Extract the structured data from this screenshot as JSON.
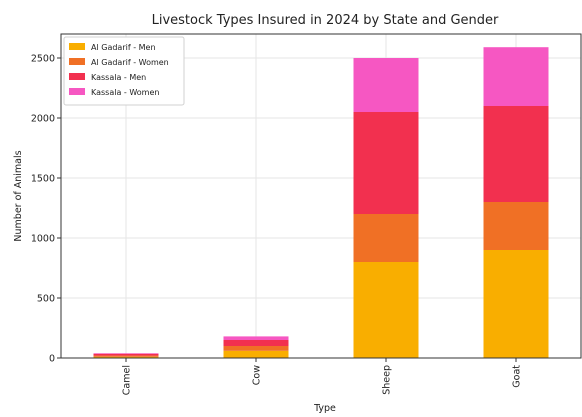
{
  "chart_data": {
    "type": "bar",
    "stacked": true,
    "title": "Livestock Types Insured in 2024 by State and Gender",
    "xlabel": "Type",
    "ylabel": "Number of Animals",
    "categories": [
      "Camel",
      "Cow",
      "Sheep",
      "Goat"
    ],
    "ylim": [
      0,
      2700
    ],
    "yticks": [
      0,
      500,
      1000,
      1500,
      2000,
      2500
    ],
    "grid": true,
    "legend_position": "top-left",
    "series": [
      {
        "name": "Al Gadarif - Men",
        "color": "#F9AE00",
        "values": [
          10,
          60,
          800,
          900
        ]
      },
      {
        "name": "Al Gadarif - Women",
        "color": "#F07025",
        "values": [
          10,
          40,
          400,
          400
        ]
      },
      {
        "name": "Kassala - Men",
        "color": "#F2304F",
        "values": [
          15,
          50,
          850,
          800
        ]
      },
      {
        "name": "Kassala - Women",
        "color": "#F657C2",
        "values": [
          5,
          30,
          450,
          490
        ]
      }
    ]
  }
}
